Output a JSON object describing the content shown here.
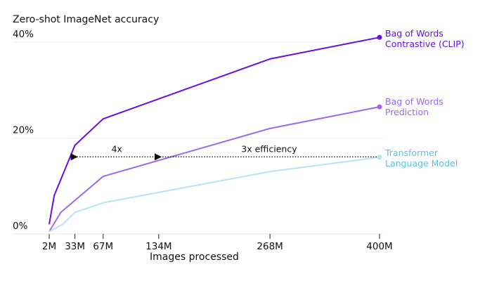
{
  "chart_data": {
    "type": "line",
    "ylabel": "Zero-shot ImageNet accuracy",
    "xlabel": "Images processed",
    "ylim": [
      0,
      40
    ],
    "yticks": [
      {
        "value": 0,
        "label": "0%"
      },
      {
        "value": 20,
        "label": "20%"
      },
      {
        "value": 40,
        "label": "40%"
      }
    ],
    "xlim": [
      0,
      400
    ],
    "xticks": [
      {
        "value": 2,
        "label": "2M"
      },
      {
        "value": 33,
        "label": "33M"
      },
      {
        "value": 67,
        "label": "67M"
      },
      {
        "value": 134,
        "label": "134M"
      },
      {
        "value": 268,
        "label": "268M"
      },
      {
        "value": 400,
        "label": "400M"
      }
    ],
    "grid": "horizontal",
    "series": [
      {
        "name": "Bag of Words Contrastive (CLIP)",
        "name_lines": [
          "Bag of Words",
          "Contrastive (CLIP)"
        ],
        "color": "#6a0fe0",
        "x": [
          2,
          4,
          8,
          33,
          67,
          268,
          400
        ],
        "y": [
          2,
          4,
          8,
          18.5,
          24,
          36.5,
          41
        ]
      },
      {
        "name": "Bag of Words Prediction",
        "name_lines": [
          "Bag of Words",
          "Prediction"
        ],
        "color": "#9b6ae8",
        "x": [
          2,
          16,
          67,
          268,
          400
        ],
        "y": [
          0.5,
          4.5,
          12,
          22,
          26.5
        ]
      },
      {
        "name": "Transformer Language Model",
        "name_lines": [
          "Transformer",
          "Language Model"
        ],
        "color": "#b9e3f0",
        "label_color": "#62c1d8",
        "x": [
          2,
          18,
          33,
          67,
          268,
          400
        ],
        "y": [
          0.5,
          2,
          4.5,
          6.5,
          13,
          16
        ]
      }
    ],
    "annotations": [
      {
        "text": "4x",
        "from_x": 134,
        "to_x": 33,
        "y": 16
      },
      {
        "text": "3x efficiency",
        "from_x": 400,
        "to_x": 134,
        "y": 16
      }
    ]
  }
}
